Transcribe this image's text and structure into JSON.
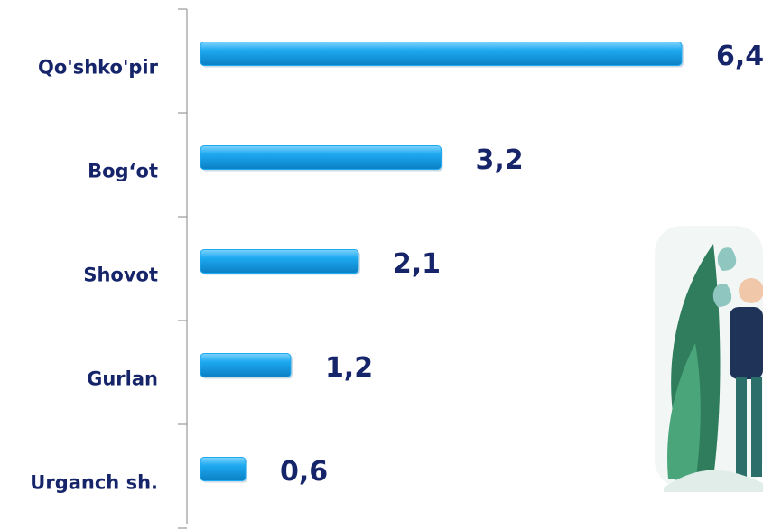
{
  "chart_data": {
    "type": "bar",
    "orientation": "horizontal",
    "categories": [
      "Qo'shko'pir",
      "Bog‘ot",
      "Shovot",
      "Gurlan",
      "Urganch sh."
    ],
    "values": [
      6.4,
      3.2,
      2.1,
      1.2,
      0.6
    ],
    "value_labels": [
      "6,4",
      "3,2",
      "2,1",
      "1,2",
      "0,6"
    ],
    "color": "#1ea9f0"
  }
}
